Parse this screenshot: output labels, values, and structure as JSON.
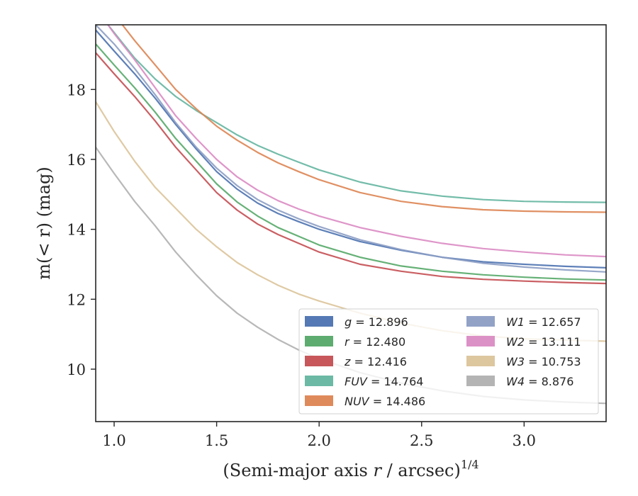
{
  "chart_data": {
    "type": "line",
    "title": "",
    "xlabel": "(Semi-major axis r / arcsec)",
    "xlabel_var": "r",
    "xlabel_exponent": "1/4",
    "ylabel": "m(< r) (mag)",
    "xlim": [
      0.91,
      3.4
    ],
    "ylim": [
      19.85,
      8.5
    ],
    "y_inverted": true,
    "xticks": [
      1.0,
      1.5,
      2.0,
      2.5,
      3.0
    ],
    "xtick_labels": [
      "1.0",
      "1.5",
      "2.0",
      "2.5",
      "3.0"
    ],
    "yticks": [
      10,
      12,
      14,
      16,
      18
    ],
    "ytick_labels": [
      "10",
      "12",
      "14",
      "16",
      "18"
    ],
    "grid": false,
    "legend_position": "lower-right",
    "legend_columns": 2,
    "series": [
      {
        "name": "g",
        "total": "12.896",
        "color": "#4c72b0",
        "x": [
          0.91,
          1.0,
          1.1,
          1.2,
          1.3,
          1.4,
          1.5,
          1.6,
          1.7,
          1.8,
          1.9,
          2.0,
          2.2,
          2.4,
          2.6,
          2.8,
          3.0,
          3.2,
          3.4
        ],
        "y": [
          19.7,
          19.1,
          18.45,
          17.75,
          17.0,
          16.3,
          15.65,
          15.15,
          14.75,
          14.45,
          14.22,
          14.0,
          13.65,
          13.4,
          13.2,
          13.07,
          13.0,
          12.94,
          12.9
        ]
      },
      {
        "name": "r",
        "total": "12.480",
        "color": "#55a868",
        "x": [
          0.91,
          1.0,
          1.1,
          1.2,
          1.3,
          1.4,
          1.5,
          1.6,
          1.7,
          1.8,
          1.9,
          2.0,
          2.2,
          2.4,
          2.6,
          2.8,
          3.0,
          3.2,
          3.4
        ],
        "y": [
          19.3,
          18.7,
          18.05,
          17.35,
          16.6,
          15.95,
          15.3,
          14.78,
          14.38,
          14.05,
          13.8,
          13.55,
          13.2,
          12.95,
          12.8,
          12.7,
          12.63,
          12.58,
          12.55
        ]
      },
      {
        "name": "z",
        "total": "12.416",
        "color": "#c44e52",
        "x": [
          0.91,
          1.0,
          1.1,
          1.2,
          1.3,
          1.4,
          1.5,
          1.6,
          1.7,
          1.8,
          1.9,
          2.0,
          2.2,
          2.4,
          2.6,
          2.8,
          3.0,
          3.2,
          3.4
        ],
        "y": [
          19.05,
          18.45,
          17.8,
          17.1,
          16.35,
          15.7,
          15.05,
          14.55,
          14.15,
          13.85,
          13.6,
          13.35,
          13.0,
          12.8,
          12.65,
          12.57,
          12.52,
          12.48,
          12.45
        ]
      },
      {
        "name": "FUV",
        "total": "14.764",
        "color": "#64b5a0",
        "x": [
          0.97,
          1.1,
          1.2,
          1.3,
          1.4,
          1.5,
          1.6,
          1.7,
          1.8,
          1.9,
          2.0,
          2.2,
          2.4,
          2.6,
          2.8,
          3.0,
          3.2,
          3.4
        ],
        "y": [
          19.85,
          18.9,
          18.3,
          17.8,
          17.4,
          17.05,
          16.7,
          16.4,
          16.15,
          15.92,
          15.7,
          15.35,
          15.1,
          14.95,
          14.85,
          14.8,
          14.78,
          14.77
        ]
      },
      {
        "name": "NUV",
        "total": "14.486",
        "color": "#dd8452",
        "x": [
          1.04,
          1.1,
          1.2,
          1.3,
          1.4,
          1.5,
          1.6,
          1.7,
          1.8,
          1.9,
          2.0,
          2.2,
          2.4,
          2.6,
          2.8,
          3.0,
          3.2,
          3.4
        ],
        "y": [
          19.85,
          19.4,
          18.7,
          18.0,
          17.45,
          16.95,
          16.55,
          16.2,
          15.9,
          15.65,
          15.42,
          15.05,
          14.8,
          14.65,
          14.56,
          14.52,
          14.5,
          14.49
        ]
      },
      {
        "name": "W1",
        "total": "12.657",
        "color": "#8c9dc4",
        "x": [
          0.91,
          1.0,
          1.1,
          1.2,
          1.3,
          1.4,
          1.5,
          1.6,
          1.7,
          1.8,
          1.9,
          2.0,
          2.2,
          2.4,
          2.6,
          2.8,
          3.0,
          3.2,
          3.4
        ],
        "y": [
          19.85,
          19.3,
          18.6,
          17.85,
          17.05,
          16.35,
          15.75,
          15.25,
          14.85,
          14.55,
          14.3,
          14.08,
          13.7,
          13.42,
          13.2,
          13.03,
          12.92,
          12.84,
          12.78
        ]
      },
      {
        "name": "W2",
        "total": "13.111",
        "color": "#da8bc3",
        "x": [
          0.97,
          1.0,
          1.1,
          1.2,
          1.3,
          1.4,
          1.5,
          1.6,
          1.7,
          1.8,
          1.9,
          2.0,
          2.2,
          2.4,
          2.6,
          2.8,
          3.0,
          3.2,
          3.4
        ],
        "y": [
          19.85,
          19.6,
          18.85,
          18.05,
          17.25,
          16.6,
          16.0,
          15.5,
          15.12,
          14.82,
          14.58,
          14.38,
          14.05,
          13.8,
          13.6,
          13.45,
          13.35,
          13.27,
          13.22
        ]
      },
      {
        "name": "W3",
        "total": "10.753",
        "color": "#dbc49a",
        "x": [
          0.91,
          1.0,
          1.1,
          1.2,
          1.3,
          1.4,
          1.5,
          1.6,
          1.7,
          1.8,
          1.9,
          2.0,
          2.2,
          2.4,
          2.6,
          2.8,
          3.0,
          3.2,
          3.4
        ],
        "y": [
          17.65,
          16.8,
          15.95,
          15.2,
          14.6,
          14.0,
          13.5,
          13.05,
          12.7,
          12.4,
          12.15,
          11.95,
          11.6,
          11.32,
          11.1,
          10.95,
          10.87,
          10.83,
          10.8
        ]
      },
      {
        "name": "W4",
        "total": "8.876",
        "color": "#b0b0b0",
        "x": [
          0.91,
          1.0,
          1.1,
          1.2,
          1.3,
          1.4,
          1.5,
          1.6,
          1.7,
          1.8,
          1.9,
          2.0,
          2.2,
          2.4,
          2.6,
          2.8,
          3.0,
          3.2,
          3.4
        ],
        "y": [
          16.35,
          15.6,
          14.8,
          14.1,
          13.35,
          12.7,
          12.1,
          11.6,
          11.2,
          10.85,
          10.55,
          10.3,
          9.9,
          9.6,
          9.38,
          9.22,
          9.12,
          9.06,
          9.02
        ]
      }
    ]
  }
}
